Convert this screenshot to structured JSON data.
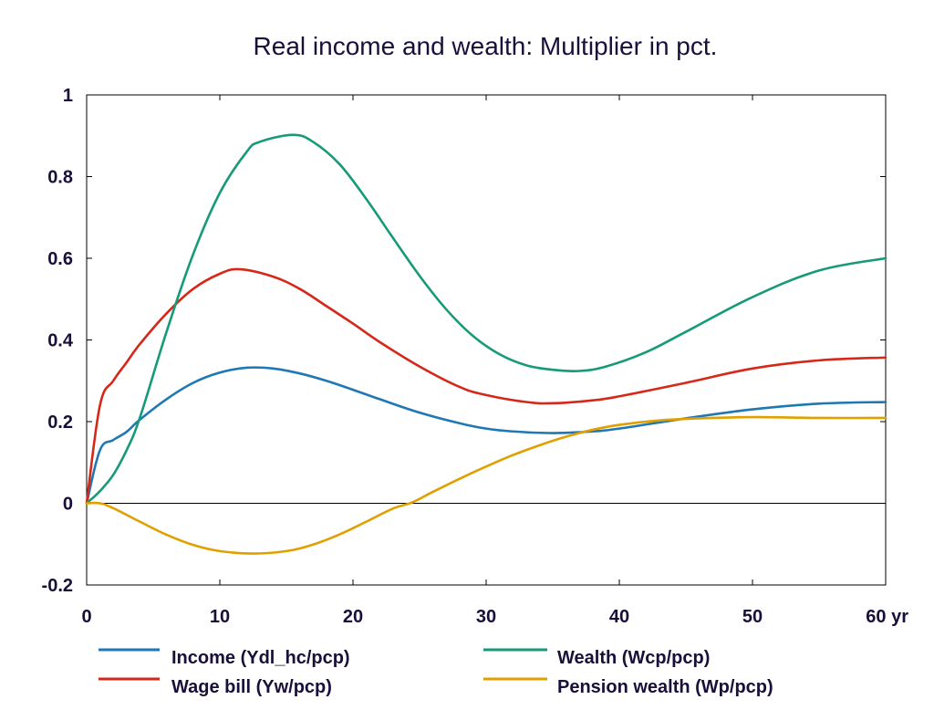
{
  "chart_data": {
    "type": "line",
    "title": "Real income and wealth: Multiplier in pct.",
    "x_unit_label": "yr",
    "xlim": [
      0,
      60
    ],
    "ylim": [
      -0.2,
      1.0
    ],
    "x_ticks": [
      0,
      10,
      20,
      30,
      40,
      50,
      60
    ],
    "y_ticks": [
      -0.2,
      0,
      0.2,
      0.4,
      0.6,
      0.8,
      1
    ],
    "y_tick_labels": [
      "-0.2",
      "0",
      "0.2",
      "0.4",
      "0.6",
      "0.8",
      "1"
    ],
    "grid": false,
    "legend_position": "bottom",
    "series": [
      {
        "name": "Income (Ydl_hc/pcp)",
        "color": "#1f77b4",
        "x": [
          0,
          1,
          2,
          3,
          4,
          6,
          8,
          10,
          12,
          14,
          16,
          18,
          20,
          22,
          25,
          28,
          30,
          32,
          35,
          38,
          40,
          45,
          50,
          55,
          60
        ],
        "y": [
          0,
          0.13,
          0.155,
          0.175,
          0.205,
          0.255,
          0.295,
          0.32,
          0.332,
          0.33,
          0.318,
          0.3,
          0.278,
          0.255,
          0.222,
          0.196,
          0.183,
          0.176,
          0.172,
          0.176,
          0.183,
          0.208,
          0.23,
          0.244,
          0.248
        ]
      },
      {
        "name": "Wage bill (Yw/pcp)",
        "color": "#d62818",
        "x": [
          0,
          1,
          2,
          3,
          4,
          6,
          8,
          10,
          11.5,
          14,
          16,
          18,
          20,
          22,
          25,
          28,
          30,
          33,
          35,
          38,
          40,
          45,
          50,
          55,
          60
        ],
        "y": [
          0,
          0.24,
          0.3,
          0.345,
          0.39,
          0.465,
          0.525,
          0.562,
          0.573,
          0.555,
          0.525,
          0.483,
          0.44,
          0.395,
          0.335,
          0.285,
          0.265,
          0.248,
          0.245,
          0.252,
          0.262,
          0.295,
          0.33,
          0.35,
          0.357
        ]
      },
      {
        "name": "Wealth (Wcp/pcp)",
        "color": "#169a78",
        "x": [
          0,
          1,
          2,
          3,
          4,
          6,
          8,
          10,
          12,
          13,
          15.5,
          17,
          19,
          21,
          23,
          25,
          27,
          29,
          31,
          33,
          35,
          37,
          39,
          42,
          45,
          50,
          55,
          60
        ],
        "y": [
          0,
          0.03,
          0.07,
          0.13,
          0.21,
          0.42,
          0.61,
          0.76,
          0.86,
          0.885,
          0.902,
          0.885,
          0.83,
          0.745,
          0.65,
          0.557,
          0.475,
          0.41,
          0.365,
          0.338,
          0.327,
          0.324,
          0.335,
          0.37,
          0.42,
          0.505,
          0.57,
          0.6
        ]
      },
      {
        "name": "Pension wealth (Wp/pcp)",
        "color": "#e0a000",
        "x": [
          0,
          1,
          2,
          4,
          6,
          8,
          10,
          12.5,
          15,
          17,
          19,
          21,
          23,
          24.5,
          26,
          28,
          30,
          32,
          34,
          36,
          38,
          40,
          43,
          46,
          50,
          53,
          55,
          60
        ],
        "y": [
          0,
          0,
          -0.012,
          -0.045,
          -0.077,
          -0.102,
          -0.117,
          -0.123,
          -0.117,
          -0.101,
          -0.076,
          -0.045,
          -0.013,
          0.003,
          0.028,
          0.06,
          0.09,
          0.118,
          0.142,
          0.163,
          0.18,
          0.192,
          0.203,
          0.208,
          0.211,
          0.21,
          0.209,
          0.209
        ]
      }
    ]
  }
}
